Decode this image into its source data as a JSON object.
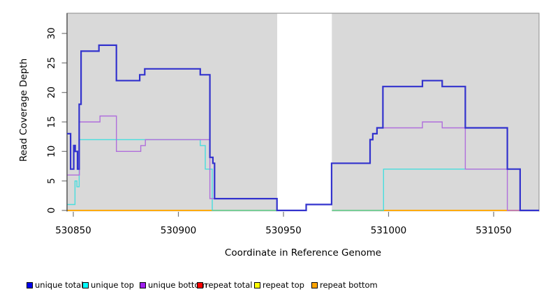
{
  "chart_data": {
    "type": "line",
    "subtype": "step-coverage",
    "title": "",
    "xlabel": "Coordinate in Reference Genome",
    "ylabel": "Read Coverage Depth",
    "xlim": [
      530847,
      531071.6
    ],
    "ylim": [
      0,
      33.5
    ],
    "x_ticks": [
      530850,
      530900,
      530950,
      531000,
      531050
    ],
    "y_ticks": [
      0,
      5,
      10,
      15,
      20,
      25,
      30
    ],
    "grid": false,
    "legend_position": "bottom",
    "plot_bg_color": "#d9d9d9",
    "plot_border_color": "#9c9c9c",
    "axis_color": "#3a3a3a",
    "tick_color": "#757575",
    "masked_region": {
      "x_start": 530947,
      "x_end": 530973,
      "color": "#ffffff"
    },
    "series": [
      {
        "name": "repeat total",
        "color": "#ff0000",
        "line_width": 1.4,
        "opacity": 1,
        "points": [
          [
            530847,
            0
          ]
        ]
      },
      {
        "name": "repeat top",
        "color": "#ffff00",
        "line_width": 1.4,
        "opacity": 1,
        "points": [
          [
            530847,
            0
          ]
        ]
      },
      {
        "name": "repeat bottom",
        "color": "#ffa500",
        "line_width": 1.5,
        "opacity": 1,
        "points": [
          [
            530847,
            0
          ]
        ]
      },
      {
        "name": "unique top",
        "color": "#2edede",
        "line_width": 1.4,
        "opacity": 0.85,
        "points": [
          [
            530847,
            1
          ],
          [
            530850.8,
            5
          ],
          [
            530851.7,
            4
          ],
          [
            530852.8,
            12
          ],
          [
            530910.4,
            11
          ],
          [
            530912.8,
            7
          ],
          [
            530916.1,
            0
          ],
          [
            530997.6,
            7
          ],
          [
            531062.6,
            0
          ]
        ]
      },
      {
        "name": "unique bottom",
        "color": "#b06edc",
        "line_width": 1.4,
        "opacity": 1,
        "points": [
          [
            530847,
            6
          ],
          [
            530852.9,
            15
          ],
          [
            530862.7,
            16
          ],
          [
            530870.5,
            10
          ],
          [
            530882.1,
            11
          ],
          [
            530884.3,
            12
          ],
          [
            530915,
            2
          ],
          [
            530946.9,
            0
          ],
          [
            530960.8,
            1
          ],
          [
            530972.9,
            8
          ],
          [
            530991.2,
            12
          ],
          [
            530992.5,
            13
          ],
          [
            530994.5,
            14
          ],
          [
            531016.1,
            15
          ],
          [
            531025.5,
            14
          ],
          [
            531036.5,
            7
          ],
          [
            531056.5,
            0
          ]
        ]
      },
      {
        "name": "unique total",
        "color": "#3232cd",
        "line_width": 2.2,
        "opacity": 1,
        "above_mask": true,
        "points": [
          [
            530847,
            13
          ],
          [
            530848.7,
            7
          ],
          [
            530850.2,
            11
          ],
          [
            530850.9,
            10
          ],
          [
            530852,
            7
          ],
          [
            530852.8,
            18
          ],
          [
            530853.7,
            27
          ],
          [
            530862.2,
            28
          ],
          [
            530870.5,
            22
          ],
          [
            530881.6,
            23
          ],
          [
            530884,
            24
          ],
          [
            530910.4,
            23
          ],
          [
            530915,
            9
          ],
          [
            530916.4,
            8
          ],
          [
            530917.2,
            2
          ],
          [
            530946.9,
            0
          ],
          [
            530960.8,
            1
          ],
          [
            530972.9,
            8
          ],
          [
            530991.2,
            12
          ],
          [
            530992.5,
            13
          ],
          [
            530994.5,
            14
          ],
          [
            530997.3,
            21
          ],
          [
            531016.1,
            22
          ],
          [
            531025.5,
            21
          ],
          [
            531036.5,
            14
          ],
          [
            531056.5,
            7
          ],
          [
            531062.6,
            0
          ]
        ]
      }
    ],
    "legend": {
      "items": [
        {
          "label": "unique total",
          "color": "#0000ee"
        },
        {
          "label": "unique top",
          "color": "#00ffff"
        },
        {
          "label": "unique bottom",
          "color": "#a020f0"
        },
        {
          "label": "repeat total",
          "color": "#ff0000"
        },
        {
          "label": "repeat top",
          "color": "#ffff00"
        },
        {
          "label": "repeat bottom",
          "color": "#ffa500"
        }
      ]
    }
  }
}
